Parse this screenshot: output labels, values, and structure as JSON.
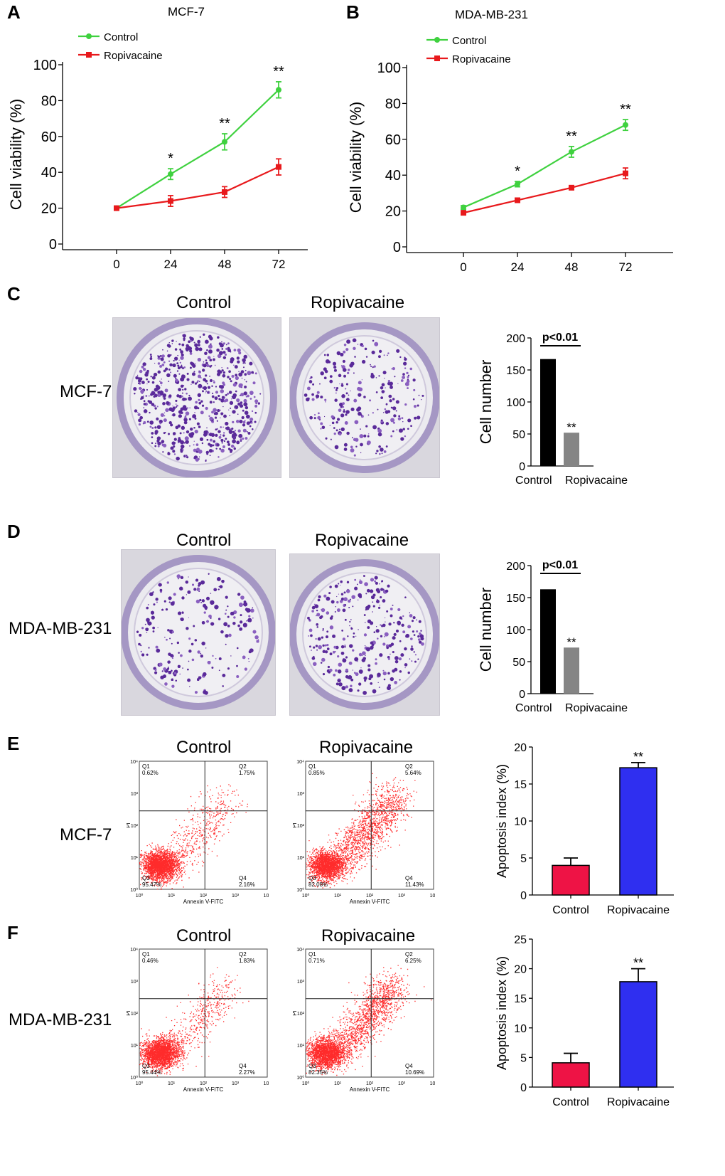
{
  "panels": {
    "A": {
      "letter": "A",
      "title": "MCF-7"
    },
    "B": {
      "letter": "B",
      "title": "MDA-MB-231"
    },
    "C": {
      "letter": "C",
      "row_label": "MCF-7",
      "col_labels": [
        "Control",
        "Ropivacaine"
      ]
    },
    "D": {
      "letter": "D",
      "row_label": "MDA-MB-231",
      "col_labels": [
        "Control",
        "Ropivacaine"
      ]
    },
    "E": {
      "letter": "E",
      "row_label": "MCF-7",
      "col_labels": [
        "Control",
        "Ropivacaine"
      ],
      "flow": [
        {
          "q1": "Q1\n0.62%",
          "q2": "Q2\n1.75%",
          "q3": "Q3\n95.47%",
          "q4": "Q4\n2.16%"
        },
        {
          "q1": "Q1\n0.85%",
          "q2": "Q2\n5.64%",
          "q3": "Q3\n82.08%",
          "q4": "Q4\n11.43%"
        }
      ]
    },
    "F": {
      "letter": "F",
      "row_label": "MDA-MB-231",
      "col_labels": [
        "Control",
        "Ropivacaine"
      ],
      "flow": [
        {
          "q1": "Q1\n0.46%",
          "q2": "Q2\n1.83%",
          "q3": "Q3\n95.44%",
          "q4": "Q4\n2.27%"
        },
        {
          "q1": "Q1\n0.71%",
          "q2": "Q2\n6.25%",
          "q3": "Q3\n82.35%",
          "q4": "Q4\n10.69%"
        }
      ]
    }
  },
  "flow_axes": {
    "x_label": "Annexin V-FITC",
    "y_label": "PI",
    "ticks": [
      "10⁰",
      "10¹",
      "10²",
      "10³",
      "10⁴"
    ]
  },
  "colors": {
    "control_line": "#3fd13f",
    "ropivacaine_line": "#e8191c",
    "control_bar": "#000000",
    "ropivacaine_bar": "#858585",
    "apoptosis_control": "#ee1345",
    "apoptosis_ropivacaine": "#2f2ff0",
    "dot": "#ff2b2b"
  },
  "chart_data": [
    {
      "id": "A",
      "type": "line",
      "title": "MCF-7",
      "ylabel": "Cell viability (%)",
      "xlabel": "",
      "x": [
        0,
        24,
        48,
        72
      ],
      "ylim": [
        0,
        100
      ],
      "yticks": [
        0,
        20,
        40,
        60,
        80,
        100
      ],
      "series": [
        {
          "name": "Control",
          "values": [
            20,
            39,
            57,
            86
          ],
          "err": [
            1,
            3,
            4.5,
            4.5
          ],
          "sig": [
            "",
            "*",
            "**",
            "**"
          ]
        },
        {
          "name": "Ropivacaine",
          "values": [
            20,
            24,
            29,
            43
          ],
          "err": [
            1,
            3,
            3,
            4.5
          ],
          "sig": [
            "",
            "",
            "",
            ""
          ]
        }
      ],
      "legend": "top-left"
    },
    {
      "id": "B",
      "type": "line",
      "title": "MDA-MB-231",
      "ylabel": "Cell viability (%)",
      "xlabel": "",
      "x": [
        0,
        24,
        48,
        72
      ],
      "ylim": [
        0,
        100
      ],
      "yticks": [
        0,
        20,
        40,
        60,
        80,
        100
      ],
      "series": [
        {
          "name": "Control",
          "values": [
            22,
            35,
            53,
            68
          ],
          "err": [
            1,
            1.5,
            3,
            3
          ],
          "sig": [
            "",
            "*",
            "**",
            "**"
          ]
        },
        {
          "name": "Ropivacaine",
          "values": [
            19,
            26,
            33,
            41
          ],
          "err": [
            1,
            1,
            1,
            3
          ],
          "sig": [
            "",
            "",
            "",
            ""
          ]
        }
      ],
      "legend": "top-left"
    },
    {
      "id": "C",
      "type": "bar",
      "ylabel": "Cell number",
      "categories": [
        "Control",
        "Ropivacaine"
      ],
      "values": [
        167,
        52
      ],
      "ylim": [
        0,
        200
      ],
      "yticks": [
        0,
        50,
        100,
        150,
        200
      ],
      "annotation": "p<0.01",
      "sig": [
        "",
        "**"
      ]
    },
    {
      "id": "D",
      "type": "bar",
      "ylabel": "Cell number",
      "categories": [
        "Control",
        "Ropivacaine"
      ],
      "values": [
        163,
        72
      ],
      "ylim": [
        0,
        200
      ],
      "yticks": [
        0,
        50,
        100,
        150,
        200
      ],
      "annotation": "p<0.01",
      "sig": [
        "",
        "**"
      ]
    },
    {
      "id": "E",
      "type": "bar",
      "ylabel": "Apoptosis index (%)",
      "categories": [
        "Control",
        "Ropivacaine"
      ],
      "values": [
        4,
        17.2
      ],
      "err": [
        1,
        0.7
      ],
      "ylim": [
        0,
        20
      ],
      "yticks": [
        0,
        5,
        10,
        15,
        20
      ],
      "sig": [
        "",
        "**"
      ]
    },
    {
      "id": "F",
      "type": "bar",
      "ylabel": "Apoptosis index (%)",
      "categories": [
        "Control",
        "Ropivacaine"
      ],
      "values": [
        4.1,
        17.8
      ],
      "err": [
        1.6,
        2.2
      ],
      "ylim": [
        0,
        25
      ],
      "yticks": [
        0,
        5,
        10,
        15,
        20,
        25
      ],
      "sig": [
        "",
        "**"
      ]
    }
  ]
}
